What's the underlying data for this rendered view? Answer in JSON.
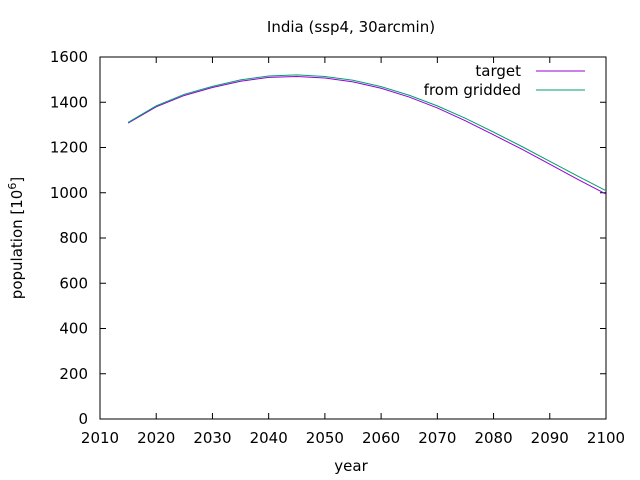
{
  "chart_data": {
    "type": "line",
    "title": "India (ssp4, 30arcmin)",
    "xlabel": "year",
    "ylabel_base": "population [10",
    "ylabel_exp": "6",
    "ylabel_close": "]",
    "xlim": [
      2010,
      2100
    ],
    "ylim": [
      0,
      1600
    ],
    "xticks": [
      2010,
      2020,
      2030,
      2040,
      2050,
      2060,
      2070,
      2080,
      2090,
      2100
    ],
    "yticks": [
      0,
      200,
      400,
      600,
      800,
      1000,
      1200,
      1400,
      1600
    ],
    "legend_position": "top-right",
    "grid": false,
    "series": [
      {
        "name": "target",
        "color": "#9400d3",
        "x": [
          2015,
          2020,
          2025,
          2030,
          2035,
          2040,
          2045,
          2050,
          2055,
          2060,
          2065,
          2070,
          2075,
          2080,
          2085,
          2090,
          2095,
          2100
        ],
        "y": [
          1308,
          1380,
          1430,
          1465,
          1493,
          1510,
          1514,
          1507,
          1490,
          1462,
          1423,
          1375,
          1318,
          1256,
          1193,
          1126,
          1059,
          994
        ]
      },
      {
        "name": "from gridded",
        "color": "#009e73",
        "x": [
          2015,
          2020,
          2025,
          2030,
          2035,
          2040,
          2045,
          2050,
          2055,
          2060,
          2065,
          2070,
          2075,
          2080,
          2085,
          2090,
          2095,
          2100
        ],
        "y": [
          1311,
          1384,
          1435,
          1470,
          1499,
          1516,
          1521,
          1514,
          1497,
          1469,
          1431,
          1384,
          1329,
          1268,
          1205,
          1139,
          1073,
          1009
        ]
      }
    ]
  }
}
